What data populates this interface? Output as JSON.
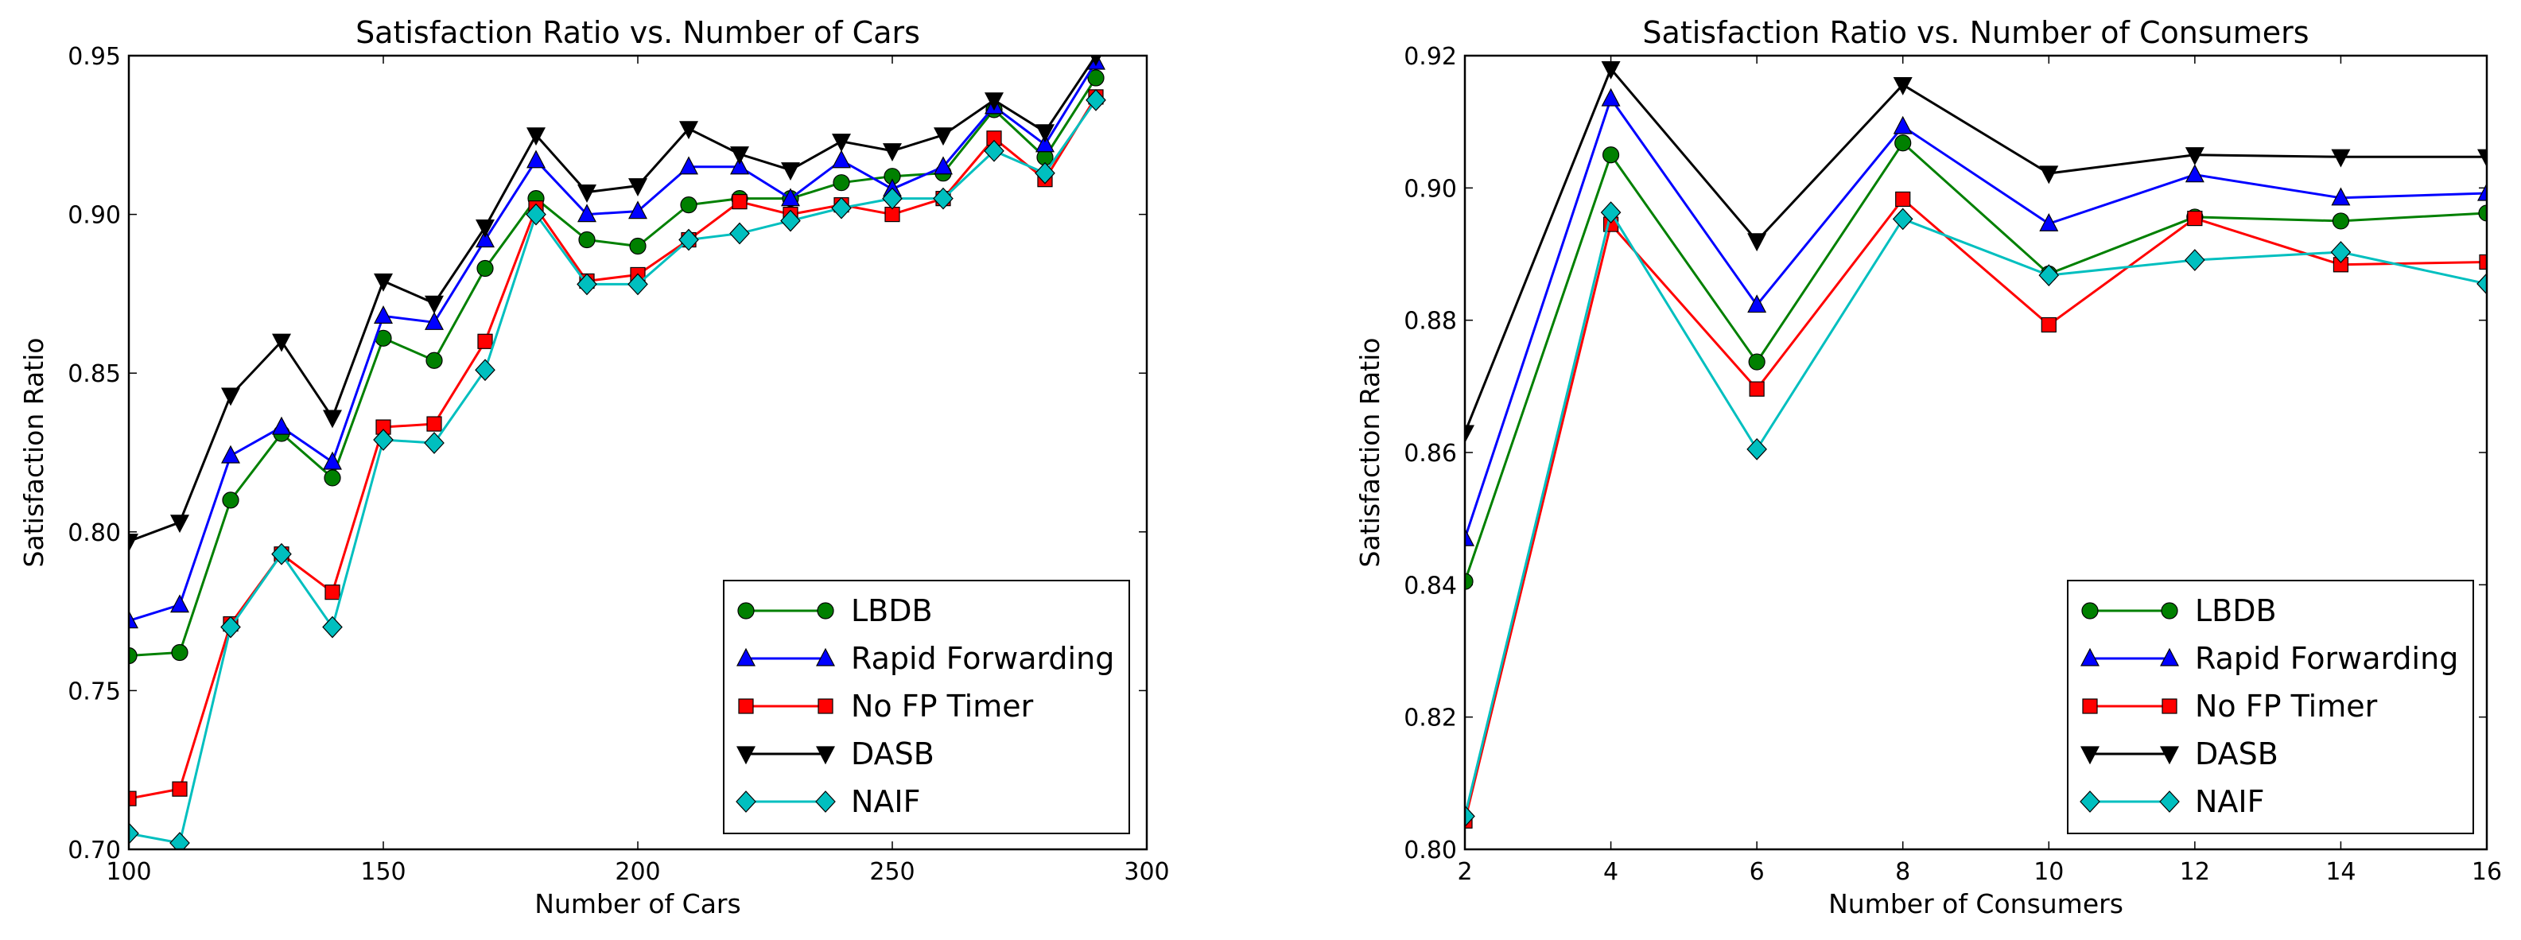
{
  "chart_data": [
    {
      "type": "line",
      "title": "Satisfaction Ratio vs. Number of Cars",
      "xlabel": "Number of Cars",
      "ylabel": "Satisfaction Ratio",
      "xlim": [
        100,
        300
      ],
      "ylim": [
        0.7,
        0.95
      ],
      "xticks": [
        "100",
        "150",
        "200",
        "250",
        "300"
      ],
      "yticks": [
        "0.70",
        "0.75",
        "0.80",
        "0.85",
        "0.90",
        "0.95"
      ],
      "legend_position": "lower-right",
      "x": [
        100,
        110,
        120,
        130,
        140,
        150,
        160,
        170,
        180,
        190,
        200,
        210,
        220,
        230,
        240,
        250,
        260,
        270,
        280,
        290
      ],
      "series": [
        {
          "name": "LBDB",
          "color": "#008000",
          "marker": "circle",
          "values": [
            0.761,
            0.762,
            0.81,
            0.831,
            0.817,
            0.861,
            0.854,
            0.883,
            0.905,
            0.892,
            0.89,
            0.903,
            0.905,
            0.905,
            0.91,
            0.912,
            0.913,
            0.933,
            0.918,
            0.943
          ]
        },
        {
          "name": "Rapid Forwarding",
          "color": "#0000ff",
          "marker": "triangle-up",
          "values": [
            0.772,
            0.777,
            0.824,
            0.833,
            0.822,
            0.868,
            0.866,
            0.892,
            0.917,
            0.9,
            0.901,
            0.915,
            0.915,
            0.905,
            0.917,
            0.908,
            0.915,
            0.934,
            0.922,
            0.948
          ]
        },
        {
          "name": "No FP Timer",
          "color": "#ff0000",
          "marker": "square",
          "values": [
            0.716,
            0.719,
            0.771,
            0.793,
            0.781,
            0.833,
            0.834,
            0.86,
            0.902,
            0.879,
            0.881,
            0.892,
            0.904,
            0.9,
            0.903,
            0.9,
            0.905,
            0.924,
            0.911,
            0.937
          ]
        },
        {
          "name": "DASB",
          "color": "#000000",
          "marker": "triangle-down",
          "values": [
            0.797,
            0.803,
            0.843,
            0.86,
            0.836,
            0.879,
            0.872,
            0.896,
            0.925,
            0.907,
            0.909,
            0.927,
            0.919,
            0.914,
            0.923,
            0.92,
            0.925,
            0.936,
            0.926,
            0.95
          ]
        },
        {
          "name": "NAIF",
          "color": "#00bfbf",
          "marker": "diamond",
          "values": [
            0.705,
            0.702,
            0.77,
            0.793,
            0.77,
            0.829,
            0.828,
            0.851,
            0.9,
            0.878,
            0.878,
            0.892,
            0.894,
            0.898,
            0.902,
            0.905,
            0.905,
            0.92,
            0.913,
            0.936
          ]
        }
      ]
    },
    {
      "type": "line",
      "title": "Satisfaction Ratio vs. Number of Consumers",
      "xlabel": "Number of Consumers",
      "ylabel": "Satisfaction Ratio",
      "xlim": [
        2,
        16
      ],
      "ylim": [
        0.8,
        0.92
      ],
      "xticks": [
        "2",
        "4",
        "6",
        "8",
        "10",
        "12",
        "14",
        "16"
      ],
      "yticks": [
        "0.80",
        "0.82",
        "0.84",
        "0.86",
        "0.88",
        "0.90",
        "0.92"
      ],
      "legend_position": "lower-right",
      "x": [
        2,
        4,
        6,
        8,
        10,
        12,
        14,
        16
      ],
      "series": [
        {
          "name": "LBDB",
          "color": "#008000",
          "marker": "circle",
          "values": [
            0.8405,
            0.905,
            0.8737,
            0.9068,
            0.887,
            0.8956,
            0.895,
            0.8962
          ]
        },
        {
          "name": "Rapid Forwarding",
          "color": "#0000ff",
          "marker": "triangle-up",
          "values": [
            0.847,
            0.9135,
            0.8823,
            0.9093,
            0.8946,
            0.902,
            0.8985,
            0.8992
          ]
        },
        {
          "name": "No FP Timer",
          "color": "#ff0000",
          "marker": "square",
          "values": [
            0.8043,
            0.8945,
            0.8696,
            0.8983,
            0.8793,
            0.8954,
            0.8884,
            0.8888
          ]
        },
        {
          "name": "DASB",
          "color": "#000000",
          "marker": "triangle-down",
          "values": [
            0.863,
            0.918,
            0.892,
            0.9156,
            0.9022,
            0.905,
            0.9047,
            0.9047
          ]
        },
        {
          "name": "NAIF",
          "color": "#00bfbf",
          "marker": "diamond",
          "values": [
            0.805,
            0.8963,
            0.8605,
            0.8953,
            0.8868,
            0.8891,
            0.8903,
            0.8855
          ]
        }
      ]
    }
  ]
}
